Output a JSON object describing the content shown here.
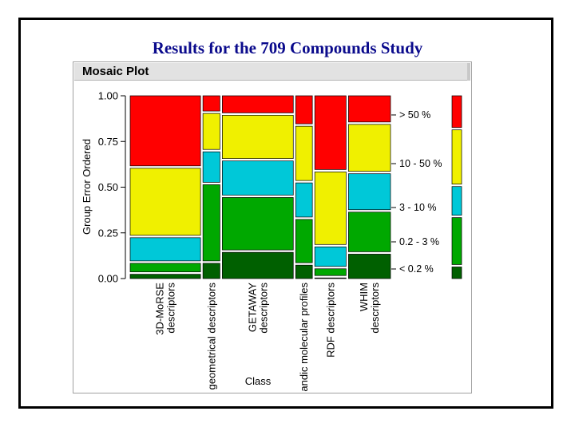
{
  "slide": {
    "title": "Results for the 709 Compounds Study"
  },
  "panel": {
    "header": "Mosaic Plot"
  },
  "colors": {
    "gt50": "#ff0000",
    "p10_50": "#f0f000",
    "p3_10": "#00c8d8",
    "p02_3": "#00a800",
    "lt02": "#006000"
  },
  "chart_data": {
    "type": "mosaic",
    "xlabel": "Class",
    "ylabel": "Group Error Ordered",
    "ylim": [
      0,
      1
    ],
    "yticks": [
      "0.00",
      "0.25",
      "0.50",
      "0.75",
      "1.00"
    ],
    "levels": [
      "< 0.2 %",
      "0.2 - 3 %",
      "3 - 10 %",
      "10 - 50 %",
      "> 50 %"
    ],
    "categories": [
      {
        "label_lines": [
          "3D-MoRSE",
          "descriptors"
        ],
        "width_share": 0.236,
        "fractions": [
          0.03,
          0.06,
          0.14,
          0.38,
          0.39
        ]
      },
      {
        "label_lines": [
          "geometrical descriptors"
        ],
        "width_share": 0.057,
        "fractions": [
          0.09,
          0.43,
          0.18,
          0.21,
          0.09
        ]
      },
      {
        "label_lines": [
          "GETAWAY",
          "descriptors"
        ],
        "width_share": 0.238,
        "fractions": [
          0.15,
          0.3,
          0.2,
          0.25,
          0.1
        ]
      },
      {
        "label_lines": [
          "andic molecular profiles"
        ],
        "width_share": 0.056,
        "fractions": [
          0.08,
          0.25,
          0.2,
          0.31,
          0.16
        ]
      },
      {
        "label_lines": [
          "RDF descriptors"
        ],
        "width_share": 0.105,
        "fractions": [
          0.01,
          0.05,
          0.12,
          0.41,
          0.41
        ]
      },
      {
        "label_lines": [
          "WHIM",
          "descriptors"
        ],
        "width_share": 0.141,
        "fractions": [
          0.14,
          0.23,
          0.21,
          0.27,
          0.15
        ]
      }
    ],
    "marginal": [
      0.07,
      0.27,
      0.17,
      0.31,
      0.18
    ]
  }
}
